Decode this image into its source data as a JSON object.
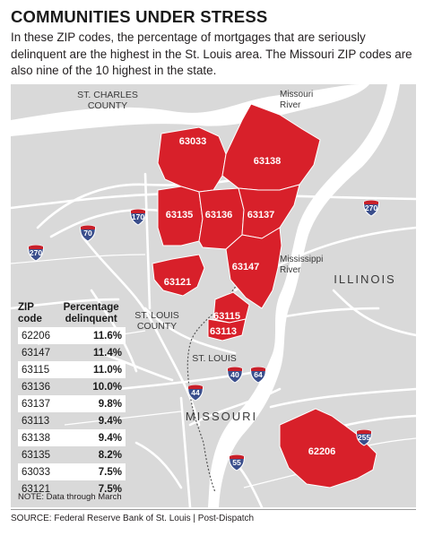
{
  "header": {
    "title": "COMMUNITIES UNDER STRESS",
    "subtitle": "In these ZIP codes, the percentage of mortgages that are seriously delinquent are the highest in the St. Louis area. The Missouri ZIP codes are also nine of the 10 highest in the state."
  },
  "map": {
    "place_labels": {
      "st_charles_county": "ST. CHARLES\nCOUNTY",
      "missouri_river": "Missouri\nRiver",
      "mississippi_river": "Mississippi\nRiver",
      "illinois": "ILLINOIS",
      "st_louis_county": "ST. LOUIS\nCOUNTY",
      "st_louis": "ST. LOUIS",
      "missouri": "MISSOURI"
    },
    "zip_areas": [
      {
        "zip": "63033"
      },
      {
        "zip": "63138"
      },
      {
        "zip": "63135"
      },
      {
        "zip": "63136"
      },
      {
        "zip": "63137"
      },
      {
        "zip": "63147"
      },
      {
        "zip": "63121"
      },
      {
        "zip": "63115"
      },
      {
        "zip": "63113"
      },
      {
        "zip": "62206"
      }
    ],
    "highways": [
      {
        "number": "270",
        "type": "interstate"
      },
      {
        "number": "170",
        "type": "interstate"
      },
      {
        "number": "70",
        "type": "interstate"
      },
      {
        "number": "270",
        "type": "interstate"
      },
      {
        "number": "40",
        "type": "interstate"
      },
      {
        "number": "64",
        "type": "interstate"
      },
      {
        "number": "44",
        "type": "interstate"
      },
      {
        "number": "55",
        "type": "interstate"
      },
      {
        "number": "255",
        "type": "interstate"
      }
    ],
    "colors": {
      "land": "#d9d9d9",
      "zip_fill": "#d8202a",
      "river": "#ffffff",
      "roads": "#ffffff",
      "shield_red": "#c8202a",
      "shield_blue": "#3a4e8c"
    }
  },
  "table": {
    "header_zip": "ZIP\ncode",
    "header_pct": "Percentage\ndelinquent",
    "rows": [
      {
        "zip": "62206",
        "pct": "11.6%"
      },
      {
        "zip": "63147",
        "pct": "11.4%"
      },
      {
        "zip": "63115",
        "pct": "11.0%"
      },
      {
        "zip": "63136",
        "pct": "10.0%"
      },
      {
        "zip": "63137",
        "pct": "9.8%"
      },
      {
        "zip": "63113",
        "pct": "9.4%"
      },
      {
        "zip": "63138",
        "pct": "9.4%"
      },
      {
        "zip": "63135",
        "pct": "8.2%"
      },
      {
        "zip": "63033",
        "pct": "7.5%"
      },
      {
        "zip": "63121",
        "pct": "7.5%"
      }
    ]
  },
  "note": "NOTE: Data through March",
  "source": "SOURCE: Federal Reserve Bank of St. Louis | Post-Dispatch"
}
